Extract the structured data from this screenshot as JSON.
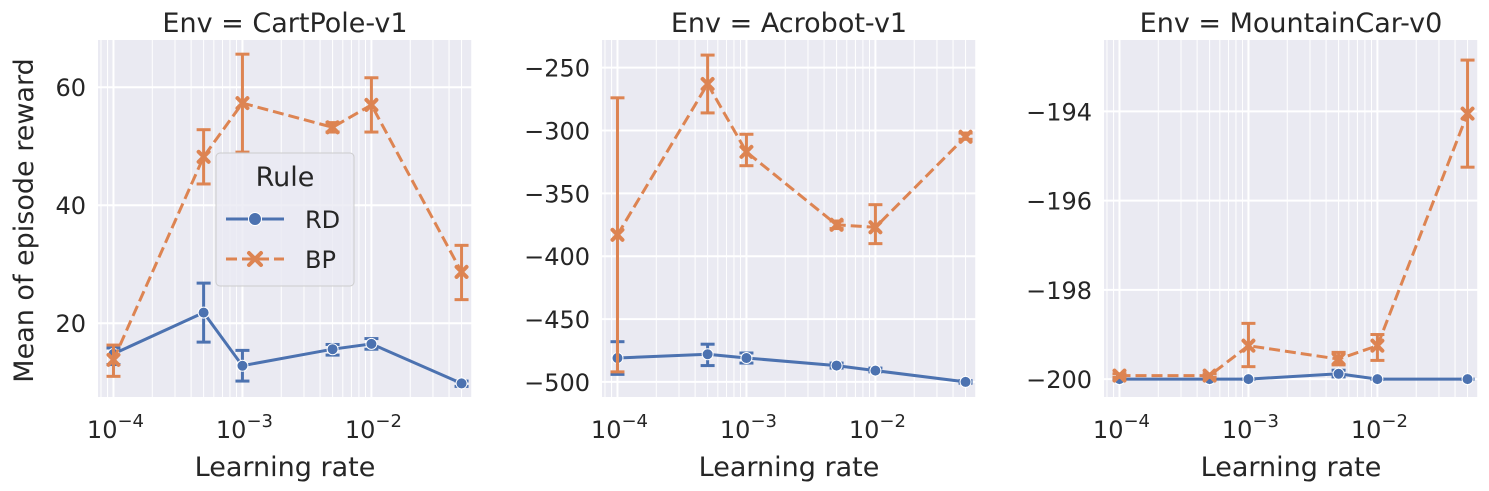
{
  "figure": {
    "ylabel": "Mean of episode reward",
    "xlabel": "Learning rate",
    "legend": {
      "title": "Rule",
      "placement": "upper-left-center of first panel",
      "entries": [
        {
          "name": "RD",
          "color": "#4c72b0",
          "marker": "circle",
          "linestyle": "solid"
        },
        {
          "name": "BP",
          "color": "#dd8452",
          "marker": "x",
          "linestyle": "dashed"
        }
      ]
    },
    "background": "#eaeaf2",
    "grid": true
  },
  "chart_data": [
    {
      "type": "line",
      "title": "Env = CartPole-v1",
      "xlabel": "Learning rate",
      "ylabel": "Mean of episode reward",
      "xscale": "log",
      "x": [
        0.0001,
        0.0005,
        0.001,
        0.005,
        0.01,
        0.05
      ],
      "xticks": [
        {
          "exp": "−4",
          "value": 0.0001
        },
        {
          "exp": "−3",
          "value": 0.001
        },
        {
          "exp": "−2",
          "value": 0.01
        }
      ],
      "ylim": [
        7.5,
        68
      ],
      "yticks": [
        20,
        40,
        60
      ],
      "series": [
        {
          "name": "RD",
          "values": [
            14.8,
            21.8,
            12.8,
            15.6,
            16.5,
            9.8
          ],
          "err_low": [
            13.0,
            16.8,
            10.2,
            14.6,
            15.6,
            9.3
          ],
          "err_high": [
            15.8,
            26.8,
            15.4,
            16.4,
            17.4,
            10.2
          ]
        },
        {
          "name": "BP",
          "values": [
            13.8,
            48.2,
            57.3,
            53.2,
            57.0,
            28.7
          ],
          "err_low": [
            11.0,
            43.6,
            49.0,
            52.4,
            52.4,
            24.0
          ],
          "err_high": [
            16.3,
            52.8,
            65.6,
            54.0,
            61.6,
            33.2
          ]
        }
      ]
    },
    {
      "type": "line",
      "title": "Env = Acrobot-v1",
      "xlabel": "Learning rate",
      "ylabel": "",
      "xscale": "log",
      "x": [
        0.0001,
        0.0005,
        0.001,
        0.005,
        0.01,
        0.05
      ],
      "xticks": [
        {
          "exp": "−4",
          "value": 0.0001
        },
        {
          "exp": "−3",
          "value": 0.001
        },
        {
          "exp": "−2",
          "value": 0.01
        }
      ],
      "ylim": [
        -512,
        -228
      ],
      "yticks": [
        -500,
        -450,
        -400,
        -350,
        -300,
        -250
      ],
      "series": [
        {
          "name": "RD",
          "values": [
            -481,
            -478,
            -481,
            -487,
            -491,
            -500
          ],
          "err_low": [
            -494,
            -487,
            -485,
            -489,
            -492,
            -501
          ],
          "err_high": [
            -468,
            -470,
            -477,
            -485,
            -489,
            -499
          ]
        },
        {
          "name": "BP",
          "values": [
            -383,
            -263,
            -317,
            -375,
            -377,
            -305
          ],
          "err_low": [
            -492,
            -286,
            -328,
            -378,
            -390,
            -307
          ],
          "err_high": [
            -274,
            -240,
            -303,
            -372,
            -359,
            -302
          ]
        }
      ]
    },
    {
      "type": "line",
      "title": "Env = MountainCar-v0",
      "xlabel": "Learning rate",
      "ylabel": "",
      "xscale": "log",
      "x": [
        0.0001,
        0.0005,
        0.001,
        0.005,
        0.01,
        0.05
      ],
      "xticks": [
        {
          "exp": "−4",
          "value": 0.0001
        },
        {
          "exp": "−3",
          "value": 0.001
        },
        {
          "exp": "−2",
          "value": 0.01
        }
      ],
      "ylim": [
        -200.4,
        -192.4
      ],
      "yticks": [
        -200,
        -198,
        -196,
        -194
      ],
      "series": [
        {
          "name": "RD",
          "values": [
            -200.0,
            -200.0,
            -200.0,
            -199.88,
            -200.0,
            -200.0
          ],
          "err_low": [
            -200.0,
            -200.0,
            -200.0,
            -199.95,
            -200.0,
            -200.0
          ],
          "err_high": [
            -200.0,
            -200.0,
            -200.0,
            -199.8,
            -200.0,
            -200.0
          ]
        },
        {
          "name": "BP",
          "values": [
            -199.92,
            -199.92,
            -199.25,
            -199.55,
            -199.25,
            -194.05
          ],
          "err_low": [
            -199.96,
            -199.96,
            -199.72,
            -199.68,
            -199.58,
            -195.25
          ],
          "err_high": [
            -199.88,
            -199.88,
            -198.75,
            -199.4,
            -199.0,
            -192.85
          ]
        }
      ]
    }
  ]
}
